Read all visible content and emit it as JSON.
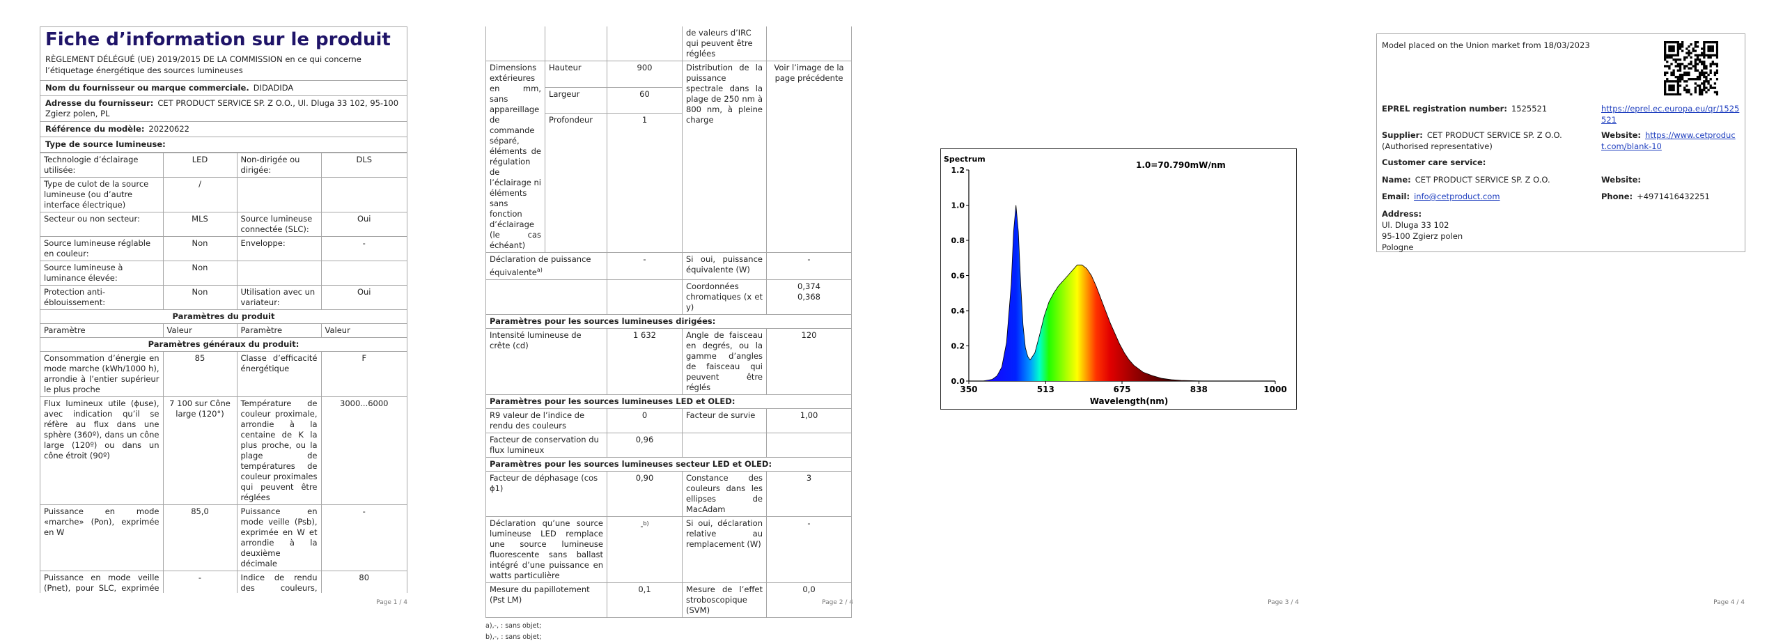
{
  "page1": {
    "title": "Fiche d’information sur le produit",
    "regulation": "RÈGLEMENT DÉLÉGUÉ (UE) 2019/2015 DE LA COMMISSION en ce qui concerne l’étiquetage énergétique des sources lumineuses",
    "supplier_label": "Nom du fournisseur ou marque commerciale.",
    "supplier_value": "DIDADIDA",
    "address_label": "Adresse du fournisseur:",
    "address_value": "CET PRODUCT SERVICE SP. Z O.O., Ul. Dluga 33 102, 95-100 Zgierz polen, PL",
    "model_label": "Référence du modèle:",
    "model_value": "20220622",
    "source_type": "Type de source lumineuse:",
    "rows": [
      {
        "a": "Technologie d’éclairage utilisée:",
        "b": "LED",
        "c": "Non-dirigée ou dirigée:",
        "d": "DLS"
      },
      {
        "a": "Type de culot de la source lumineuse (ou d’autre interface électrique)",
        "b": "/",
        "c": "",
        "d": ""
      },
      {
        "a": "Secteur ou non secteur:",
        "b": "MLS",
        "c": "Source lumineuse connectée (SLC):",
        "d": "Oui"
      },
      {
        "a": "Source lumineuse réglable en couleur:",
        "b": "Non",
        "c": "Enveloppe:",
        "d": "-"
      },
      {
        "a": "Source lumineuse à luminance élevée:",
        "b": "Non",
        "c": "",
        "d": ""
      },
      {
        "a": "Protection anti-éblouissement:",
        "b": "Non",
        "c": "Utilisation avec un variateur:",
        "d": "Oui"
      }
    ],
    "params_title": "Paramètres du produit",
    "col_headers": [
      "Paramètre",
      "Valeur",
      "Paramètre",
      "Valeur"
    ],
    "general_title": "Paramètres généraux du produit:",
    "params": [
      {
        "a": "Consommation d’énergie en mode marche (kWh/1000 h), arrondie à l’entier supérieur le plus proche",
        "b": "85",
        "c": "Classe d’efficacité énergétique",
        "d": "F"
      },
      {
        "a": "Flux lumineux utile (ϕuse), avec indication qu’il se réfère au flux dans une sphère (360º), dans un cône large (120º) ou dans un cône étroit (90º)",
        "b": "7 100 sur Cône large (120°)",
        "c": "Température de couleur proximale, arrondie à la centaine de K la plus proche, ou la plage de températures de couleur proximales qui peuvent être réglées",
        "d": "3000...6000"
      },
      {
        "a": "Puissance en mode «marche» (Pon), exprimée en W",
        "b": "85,0",
        "c": "Puissance en mode veille (Psb), exprimée en W et arrondie à la deuxième décimale",
        "d": "-"
      },
      {
        "a": "Puissance en mode veille (Pnet), pour SLC, exprimée en W et arrondie à la deuxième décimale",
        "b": "-",
        "c": "Indice de rendu des couleurs, arrondi à l’entier le plus proche, ou la plage",
        "d": "80"
      }
    ],
    "page_num": "Page 1 / 4"
  },
  "page2": {
    "cont_text": "de valeurs d’IRC qui peuvent être réglées",
    "dims_label": "Dimensions extérieures en mm, sans appareillage de commande séparé, éléments de régulation de l’éclairage ni éléments sans fonction d’éclairage (le cas échéant)",
    "dims": [
      {
        "name": "Hauteur",
        "value": "900"
      },
      {
        "name": "Largeur",
        "value": "60"
      },
      {
        "name": "Profondeur",
        "value": "1"
      }
    ],
    "spd_label": "Distribution de la puissance spectrale dans la plage de 250 nm à 800 nm, à pleine charge",
    "spd_value": "Voir l’image de la page précédente",
    "equiv_label": "Déclaration de puissance équivalente",
    "equiv_value": "-",
    "equiv_w_label": "Si oui, puissance équivalente (W)",
    "equiv_w_value": "-",
    "chroma_label": "Coordonnées chromatiques (x et y)",
    "chroma_x": "0,374",
    "chroma_y": "0,368",
    "directed_title": "Paramètres pour les sources lumineuses dirigées:",
    "peak_label": "Intensité lumineuse de crête (cd)",
    "peak_value": "1 632",
    "beam_label": "Angle de faisceau en degrés, ou la gamme d’angles de faisceau qui peuvent être réglés",
    "beam_value": "120",
    "led_title": "Paramètres pour les sources lumineuses LED et OLED:",
    "r9_label": "R9 valeur de l’indice de rendu des couleurs",
    "r9_value": "0",
    "survival_label": "Facteur de survie",
    "survival_value": "1,00",
    "flux_maint_label": "Facteur de conservation du flux lumineux",
    "flux_maint_value": "0,96",
    "mains_title": "Paramètres pour les sources lumineuses secteur LED et OLED:",
    "pf_label": "Facteur de déphasage (cos ϕ1)",
    "pf_value": "0,90",
    "macadam_label": "Constance des couleurs dans les ellipses de MacAdam",
    "macadam_value": "3",
    "fluo_label": "Déclaration qu’une source lumineuse LED remplace une source lumineuse fluorescente sans ballast intégré d’une puissance en watts particulière",
    "fluo_value": "-",
    "replace_label": "Si oui, déclaration relative au remplacement (W)",
    "replace_value": "-",
    "flicker_label": "Mesure du papillotement (Pst LM)",
    "flicker_value": "0,1",
    "svm_label": "Mesure de l’effet stroboscopique (SVM)",
    "svm_value": "0,0",
    "foot_a": "a)‚-‚ : sans objet;",
    "foot_b": "b)‚-‚ : sans objet;",
    "page_num": "Page 2 / 4"
  },
  "page3": {
    "page_num": "Page 3 / 4",
    "chart_data": {
      "type": "line",
      "title": "Spectrum",
      "annotation": "1.0=70.790mW/nm",
      "xlabel": "Wavelength(nm)",
      "ylabel": "",
      "xlim": [
        350,
        1000
      ],
      "ylim": [
        0.0,
        1.2
      ],
      "xticks": [
        "350",
        "513",
        "675",
        "838",
        "1000"
      ],
      "yticks": [
        "0.0",
        "0.2",
        "0.4",
        "0.6",
        "0.8",
        "1.0",
        "1.2"
      ],
      "series": [
        {
          "x": [
            350,
            380,
            400,
            410,
            420,
            430,
            440,
            445,
            450,
            455,
            460,
            465,
            470,
            475,
            480,
            490,
            500,
            510,
            520,
            530,
            540,
            550,
            560,
            570,
            580,
            590,
            600,
            610,
            620,
            630,
            640,
            650,
            660,
            670,
            680,
            690,
            700,
            720,
            740,
            760,
            780,
            800,
            850,
            900,
            1000
          ],
          "y": [
            0.0,
            0.0,
            0.01,
            0.03,
            0.08,
            0.22,
            0.55,
            0.85,
            1.0,
            0.85,
            0.55,
            0.32,
            0.19,
            0.14,
            0.12,
            0.16,
            0.26,
            0.37,
            0.45,
            0.5,
            0.54,
            0.57,
            0.6,
            0.63,
            0.66,
            0.66,
            0.64,
            0.6,
            0.54,
            0.47,
            0.4,
            0.33,
            0.27,
            0.21,
            0.16,
            0.12,
            0.09,
            0.05,
            0.03,
            0.015,
            0.008,
            0.004,
            0.0,
            0.0,
            0.0
          ]
        }
      ],
      "grid": false
    }
  },
  "page4": {
    "placed": "Model placed on the Union market from 18/03/2023",
    "eprel_label": "EPREL registration number:",
    "eprel_value": "1525521",
    "eprel_link": "https://eprel.ec.europa.eu/qr/1525521",
    "supplier_label": "Supplier:",
    "supplier_value": "CET PRODUCT SERVICE SP. Z O.O. (Authorised representative)",
    "website_label": "Website:",
    "website_value": "https://www.cetproduct.com/blank-10",
    "care_title": "Customer care service:",
    "name_label": "Name:",
    "name_value": "CET PRODUCT SERVICE SP. Z O.O.",
    "website2_label": "Website:",
    "email_label": "Email:",
    "email_value": "info@cetproduct.com",
    "phone_label": "Phone:",
    "phone_value": "+4971416432251",
    "address_label": "Address:",
    "address_lines": [
      "Ul. Dluga 33 102",
      "95-100 Zgierz polen",
      "Pologne"
    ],
    "page_num": "Page 4 / 4"
  }
}
